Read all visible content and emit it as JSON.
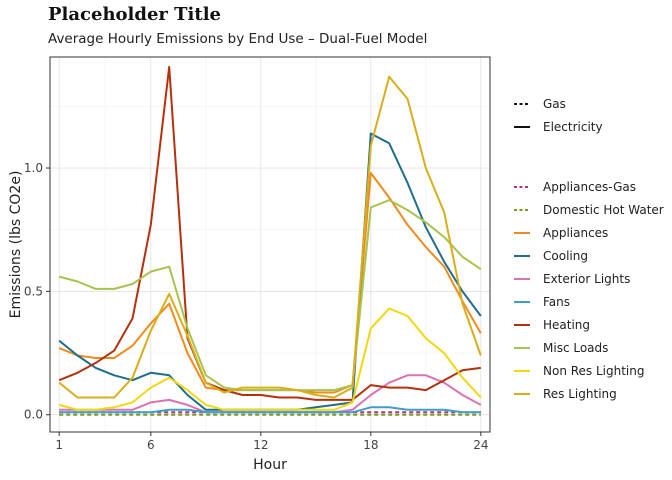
{
  "chart_data": {
    "type": "line",
    "title": "Placeholder Title",
    "subtitle": "Average Hourly Emissions by End Use – Dual-Fuel Model",
    "xlabel": "Hour",
    "ylabel": "Emissions (lbs CO2e)",
    "xlim": [
      0.5,
      24.5
    ],
    "ylim": [
      -0.07,
      1.45
    ],
    "x_ticks": [
      1,
      6,
      12,
      18,
      24
    ],
    "y_ticks": [
      0.0,
      0.5,
      1.0
    ],
    "y_tick_labels": [
      "0.0",
      "0.5",
      "1.0"
    ],
    "grid": true,
    "legend_position": "right",
    "linetype_legend": [
      {
        "name": "Gas",
        "dash": "dashed"
      },
      {
        "name": "Electricity",
        "dash": "solid"
      }
    ],
    "x": [
      1,
      2,
      3,
      4,
      5,
      6,
      7,
      8,
      9,
      10,
      11,
      12,
      13,
      14,
      15,
      16,
      17,
      18,
      19,
      20,
      21,
      22,
      23,
      24
    ],
    "series": [
      {
        "name": "Appliances-Gas",
        "color": "#B5327F",
        "dash": "dashed",
        "values": [
          0.01,
          0.01,
          0.01,
          0.01,
          0.01,
          0.01,
          0.01,
          0.01,
          0.01,
          0.01,
          0.01,
          0.01,
          0.01,
          0.01,
          0.01,
          0.01,
          0.01,
          0.01,
          0.01,
          0.01,
          0.01,
          0.01,
          0.01,
          0.01
        ]
      },
      {
        "name": "Domestic Hot Water",
        "color": "#7A9A1E",
        "dash": "dashed",
        "values": [
          0.0,
          0.0,
          0.0,
          0.0,
          0.0,
          0.0,
          0.0,
          0.0,
          0.0,
          0.0,
          0.0,
          0.0,
          0.0,
          0.0,
          0.0,
          0.0,
          0.0,
          0.0,
          0.0,
          0.0,
          0.0,
          0.0,
          0.0,
          0.0
        ]
      },
      {
        "name": "Appliances",
        "color": "#F28A1E",
        "dash": "solid",
        "values": [
          0.27,
          0.24,
          0.23,
          0.23,
          0.28,
          0.37,
          0.45,
          0.25,
          0.11,
          0.1,
          0.1,
          0.1,
          0.1,
          0.1,
          0.09,
          0.09,
          0.12,
          0.98,
          0.88,
          0.77,
          0.68,
          0.6,
          0.46,
          0.33
        ]
      },
      {
        "name": "Cooling",
        "color": "#1F6E8C",
        "dash": "solid",
        "values": [
          0.3,
          0.24,
          0.19,
          0.16,
          0.14,
          0.17,
          0.16,
          0.08,
          0.02,
          0.02,
          0.02,
          0.02,
          0.02,
          0.02,
          0.03,
          0.04,
          0.05,
          1.14,
          1.1,
          0.94,
          0.76,
          0.62,
          0.5,
          0.4
        ]
      },
      {
        "name": "Exterior Lights",
        "color": "#D973B3",
        "dash": "solid",
        "values": [
          0.02,
          0.02,
          0.02,
          0.02,
          0.02,
          0.05,
          0.06,
          0.04,
          0.01,
          0.01,
          0.01,
          0.01,
          0.01,
          0.01,
          0.01,
          0.01,
          0.02,
          0.08,
          0.13,
          0.16,
          0.16,
          0.13,
          0.08,
          0.04
        ]
      },
      {
        "name": "Fans",
        "color": "#3E9FC9",
        "dash": "solid",
        "values": [
          0.01,
          0.01,
          0.01,
          0.01,
          0.01,
          0.01,
          0.02,
          0.02,
          0.01,
          0.01,
          0.01,
          0.01,
          0.01,
          0.01,
          0.01,
          0.01,
          0.01,
          0.03,
          0.03,
          0.02,
          0.02,
          0.02,
          0.01,
          0.01
        ]
      },
      {
        "name": "Heating",
        "color": "#B5310C",
        "dash": "solid",
        "values": [
          0.14,
          0.17,
          0.21,
          0.26,
          0.39,
          0.77,
          1.41,
          0.31,
          0.13,
          0.1,
          0.08,
          0.08,
          0.07,
          0.07,
          0.06,
          0.06,
          0.06,
          0.12,
          0.11,
          0.11,
          0.1,
          0.14,
          0.18,
          0.19
        ]
      },
      {
        "name": "Misc Loads",
        "color": "#A8C34E",
        "dash": "solid",
        "values": [
          0.56,
          0.54,
          0.51,
          0.51,
          0.53,
          0.58,
          0.6,
          0.35,
          0.16,
          0.11,
          0.1,
          0.1,
          0.1,
          0.1,
          0.1,
          0.1,
          0.12,
          0.84,
          0.87,
          0.83,
          0.78,
          0.72,
          0.64,
          0.59
        ]
      },
      {
        "name": "Non Res Lighting",
        "color": "#F2D80E",
        "dash": "solid",
        "values": [
          0.04,
          0.02,
          0.02,
          0.03,
          0.05,
          0.11,
          0.15,
          0.1,
          0.04,
          0.02,
          0.02,
          0.02,
          0.02,
          0.02,
          0.02,
          0.02,
          0.05,
          0.35,
          0.43,
          0.4,
          0.31,
          0.25,
          0.15,
          0.07
        ]
      },
      {
        "name": "Res Lighting",
        "color": "#D9AE1A",
        "dash": "solid",
        "values": [
          0.13,
          0.07,
          0.07,
          0.07,
          0.15,
          0.34,
          0.49,
          0.32,
          0.13,
          0.09,
          0.11,
          0.11,
          0.11,
          0.1,
          0.08,
          0.07,
          0.11,
          1.09,
          1.37,
          1.28,
          1.0,
          0.82,
          0.45,
          0.24
        ]
      }
    ]
  }
}
